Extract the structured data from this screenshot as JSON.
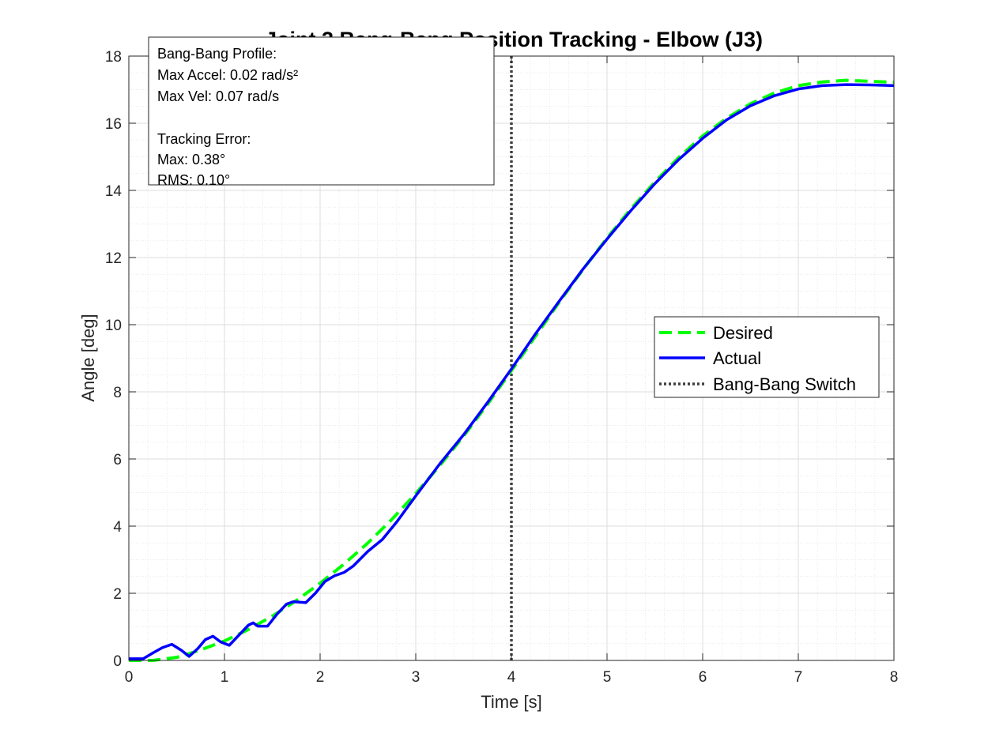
{
  "chart_data": {
    "type": "line",
    "title": "Joint 3 Bang-Bang Position Tracking - Elbow (J3)",
    "xlabel": "Time [s]",
    "ylabel": "Angle [deg]",
    "xlim": [
      0,
      8
    ],
    "ylim": [
      0,
      18
    ],
    "xticks": [
      0,
      1,
      2,
      3,
      4,
      5,
      6,
      7,
      8
    ],
    "xtick_labels": [
      "0",
      "1",
      "2",
      "3",
      "4",
      "5",
      "6",
      "7",
      "8"
    ],
    "yticks": [
      0,
      2,
      4,
      6,
      8,
      10,
      12,
      14,
      16,
      18
    ],
    "ytick_labels": [
      "0",
      "2",
      "4",
      "6",
      "8",
      "10",
      "12",
      "14",
      "16",
      "18"
    ],
    "grid": true,
    "minor_grid": true,
    "legend_position": "center-right",
    "series": [
      {
        "name": "Desired",
        "style": "dashed",
        "color": "#00FF00",
        "x": [
          0,
          0.25,
          0.5,
          0.75,
          1,
          1.25,
          1.5,
          1.75,
          2,
          2.25,
          2.5,
          2.75,
          3,
          3.25,
          3.5,
          3.75,
          4,
          4.25,
          4.5,
          4.75,
          5,
          5.25,
          5.5,
          5.75,
          6,
          6.25,
          6.5,
          6.75,
          7,
          7.25,
          7.5,
          7.75,
          8
        ],
        "values": [
          0,
          0,
          0.09,
          0.31,
          0.58,
          0.92,
          1.32,
          1.78,
          2.3,
          2.87,
          3.5,
          4.2,
          4.97,
          5.8,
          6.68,
          7.63,
          8.63,
          9.65,
          10.67,
          11.65,
          12.58,
          13.45,
          14.25,
          14.98,
          15.62,
          16.15,
          16.58,
          16.9,
          17.12,
          17.23,
          17.28,
          17.25,
          17.22
        ]
      },
      {
        "name": "Actual",
        "style": "solid",
        "color": "#0000FF",
        "x": [
          0,
          0.15,
          0.25,
          0.35,
          0.45,
          0.55,
          0.63,
          0.72,
          0.8,
          0.88,
          0.96,
          1.05,
          1.15,
          1.25,
          1.3,
          1.35,
          1.45,
          1.55,
          1.65,
          1.72,
          1.85,
          1.95,
          2.05,
          2.15,
          2.25,
          2.35,
          2.5,
          2.65,
          2.8,
          3,
          3.25,
          3.5,
          3.75,
          4,
          4.25,
          4.5,
          4.75,
          5,
          5.25,
          5.5,
          5.75,
          6,
          6.25,
          6.5,
          6.75,
          7,
          7.25,
          7.5,
          7.75,
          8
        ],
        "values": [
          0.05,
          0.05,
          0.22,
          0.38,
          0.48,
          0.3,
          0.12,
          0.35,
          0.62,
          0.72,
          0.55,
          0.45,
          0.75,
          1.05,
          1.12,
          1.02,
          1.02,
          1.38,
          1.68,
          1.75,
          1.72,
          2.0,
          2.35,
          2.52,
          2.62,
          2.82,
          3.25,
          3.6,
          4.12,
          4.9,
          5.85,
          6.72,
          7.68,
          8.68,
          9.72,
          10.7,
          11.66,
          12.55,
          13.4,
          14.2,
          14.92,
          15.55,
          16.1,
          16.52,
          16.82,
          17.02,
          17.12,
          17.15,
          17.14,
          17.12
        ]
      },
      {
        "name": "Bang-Bang Switch",
        "style": "dotted",
        "color": "#404040",
        "x": [
          4,
          4
        ],
        "values": [
          0,
          18
        ]
      }
    ],
    "annotation_box": {
      "lines": [
        "Bang-Bang Profile:",
        "Max Accel: 0.02 rad/s²",
        "Max Vel: 0.07 rad/s",
        "",
        "Tracking Error:",
        "Max: 0.38°",
        "RMS: 0.10°"
      ]
    }
  }
}
